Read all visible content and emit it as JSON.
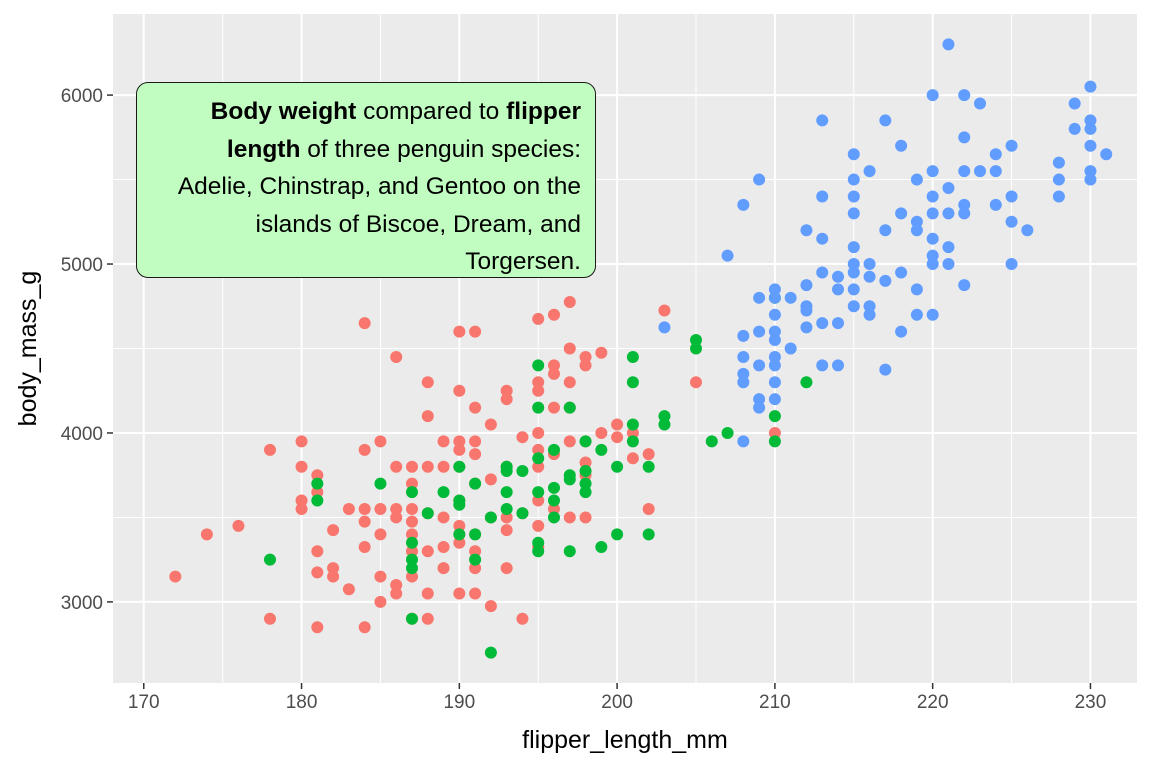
{
  "chart_data": {
    "type": "scatter",
    "xlabel": "flipper_length_mm",
    "ylabel": "body_mass_g",
    "xlim": [
      168.05,
      232.95
    ],
    "ylim": [
      2520,
      6480
    ],
    "x_ticks": [
      170,
      180,
      190,
      200,
      210,
      220,
      230
    ],
    "y_ticks": [
      3000,
      4000,
      5000,
      6000
    ],
    "grid": true,
    "legend": "none",
    "annotation": {
      "part1_bold": "Body weight",
      "part2": " compared to ",
      "part3_bold": "flipper length",
      "part4": " of three penguin species: Adelie, Chinstrap, and Gentoo on the islands of Biscoe, Dream, and Torgersen.",
      "position": "top-left",
      "fill": "#c1fdc1"
    },
    "series": [
      {
        "color": "#f8766d",
        "points": [
          [
            172,
            3150
          ],
          [
            174,
            3400
          ],
          [
            176,
            3450
          ],
          [
            178,
            3900
          ],
          [
            178,
            2900
          ],
          [
            180,
            3950
          ],
          [
            180,
            3800
          ],
          [
            180,
            3600
          ],
          [
            180,
            3550
          ],
          [
            181,
            3750
          ],
          [
            181,
            3650
          ],
          [
            181,
            3300
          ],
          [
            181,
            3175
          ],
          [
            181,
            2850
          ],
          [
            182,
            3425
          ],
          [
            182,
            3200
          ],
          [
            182,
            3150
          ],
          [
            183,
            3550
          ],
          [
            183,
            3075
          ],
          [
            184,
            4650
          ],
          [
            184,
            3900
          ],
          [
            184,
            3550
          ],
          [
            184,
            3475
          ],
          [
            184,
            3325
          ],
          [
            184,
            2850
          ],
          [
            185,
            3950
          ],
          [
            185,
            3550
          ],
          [
            185,
            3400
          ],
          [
            185,
            3150
          ],
          [
            185,
            3000
          ],
          [
            186,
            4450
          ],
          [
            186,
            3800
          ],
          [
            186,
            3550
          ],
          [
            186,
            3500
          ],
          [
            186,
            3100
          ],
          [
            186,
            3050
          ],
          [
            187,
            3800
          ],
          [
            187,
            3700
          ],
          [
            187,
            3550
          ],
          [
            187,
            3475
          ],
          [
            187,
            3400
          ],
          [
            187,
            3300
          ],
          [
            187,
            3150
          ],
          [
            187,
            2900
          ],
          [
            188,
            4300
          ],
          [
            188,
            4100
          ],
          [
            188,
            3800
          ],
          [
            188,
            3525
          ],
          [
            188,
            3300
          ],
          [
            188,
            3050
          ],
          [
            188,
            2900
          ],
          [
            189,
            3950
          ],
          [
            189,
            3800
          ],
          [
            189,
            3500
          ],
          [
            189,
            3325
          ],
          [
            189,
            3200
          ],
          [
            190,
            4600
          ],
          [
            190,
            4250
          ],
          [
            190,
            3950
          ],
          [
            190,
            3900
          ],
          [
            190,
            3800
          ],
          [
            190,
            3600
          ],
          [
            190,
            3450
          ],
          [
            190,
            3400
          ],
          [
            190,
            3350
          ],
          [
            190,
            3050
          ],
          [
            191,
            4600
          ],
          [
            191,
            4150
          ],
          [
            191,
            3950
          ],
          [
            191,
            3875
          ],
          [
            191,
            3700
          ],
          [
            191,
            3400
          ],
          [
            191,
            3300
          ],
          [
            191,
            3200
          ],
          [
            191,
            3050
          ],
          [
            192,
            4050
          ],
          [
            192,
            3725
          ],
          [
            192,
            3500
          ],
          [
            192,
            2975
          ],
          [
            193,
            4250
          ],
          [
            193,
            4200
          ],
          [
            193,
            3800
          ],
          [
            193,
            3500
          ],
          [
            193,
            3425
          ],
          [
            193,
            3200
          ],
          [
            194,
            3975
          ],
          [
            194,
            3525
          ],
          [
            194,
            2900
          ],
          [
            195,
            4675
          ],
          [
            195,
            4300
          ],
          [
            195,
            4250
          ],
          [
            195,
            4000
          ],
          [
            195,
            3900
          ],
          [
            195,
            3800
          ],
          [
            195,
            3600
          ],
          [
            195,
            3450
          ],
          [
            195,
            3325
          ],
          [
            196,
            4700
          ],
          [
            196,
            4400
          ],
          [
            196,
            4350
          ],
          [
            196,
            4150
          ],
          [
            196,
            3875
          ],
          [
            196,
            3550
          ],
          [
            197,
            4775
          ],
          [
            197,
            4500
          ],
          [
            197,
            4300
          ],
          [
            197,
            4150
          ],
          [
            197,
            3950
          ],
          [
            197,
            3500
          ],
          [
            198,
            4450
          ],
          [
            198,
            4400
          ],
          [
            198,
            3950
          ],
          [
            198,
            3825
          ],
          [
            198,
            3750
          ],
          [
            198,
            3500
          ],
          [
            199,
            4475
          ],
          [
            199,
            4000
          ],
          [
            200,
            4050
          ],
          [
            200,
            3975
          ],
          [
            201,
            4000
          ],
          [
            201,
            3850
          ],
          [
            202,
            3875
          ],
          [
            202,
            3550
          ],
          [
            203,
            4725
          ],
          [
            205,
            4300
          ],
          [
            210,
            4000
          ]
        ]
      },
      {
        "color": "#00ba38",
        "points": [
          [
            178,
            3250
          ],
          [
            181,
            3700
          ],
          [
            181,
            3600
          ],
          [
            185,
            3700
          ],
          [
            187,
            3650
          ],
          [
            187,
            3350
          ],
          [
            187,
            3250
          ],
          [
            187,
            3200
          ],
          [
            187,
            2900
          ],
          [
            188,
            3525
          ],
          [
            189,
            3650
          ],
          [
            190,
            3800
          ],
          [
            190,
            3600
          ],
          [
            190,
            3575
          ],
          [
            190,
            3400
          ],
          [
            191,
            3700
          ],
          [
            191,
            3400
          ],
          [
            191,
            3250
          ],
          [
            192,
            3500
          ],
          [
            192,
            2700
          ],
          [
            193,
            3800
          ],
          [
            193,
            3775
          ],
          [
            193,
            3650
          ],
          [
            193,
            3550
          ],
          [
            194,
            3775
          ],
          [
            194,
            3525
          ],
          [
            195,
            4400
          ],
          [
            195,
            4150
          ],
          [
            195,
            3850
          ],
          [
            195,
            3650
          ],
          [
            195,
            3350
          ],
          [
            195,
            3300
          ],
          [
            196,
            3900
          ],
          [
            196,
            3675
          ],
          [
            196,
            3600
          ],
          [
            196,
            3500
          ],
          [
            197,
            4150
          ],
          [
            197,
            3750
          ],
          [
            197,
            3725
          ],
          [
            197,
            3300
          ],
          [
            198,
            3950
          ],
          [
            198,
            3775
          ],
          [
            198,
            3700
          ],
          [
            198,
            3650
          ],
          [
            199,
            3900
          ],
          [
            199,
            3325
          ],
          [
            200,
            3800
          ],
          [
            200,
            3400
          ],
          [
            201,
            4450
          ],
          [
            201,
            4300
          ],
          [
            201,
            4050
          ],
          [
            201,
            3950
          ],
          [
            202,
            3800
          ],
          [
            202,
            3400
          ],
          [
            203,
            4100
          ],
          [
            203,
            4050
          ],
          [
            205,
            4550
          ],
          [
            205,
            4500
          ],
          [
            206,
            3950
          ],
          [
            207,
            4000
          ],
          [
            210,
            4800
          ],
          [
            210,
            4100
          ],
          [
            210,
            3950
          ],
          [
            212,
            4300
          ]
        ]
      },
      {
        "color": "#619cff",
        "points": [
          [
            203,
            4625
          ],
          [
            207,
            5050
          ],
          [
            208,
            5350
          ],
          [
            208,
            4575
          ],
          [
            208,
            4450
          ],
          [
            208,
            4350
          ],
          [
            208,
            4300
          ],
          [
            208,
            3950
          ],
          [
            209,
            5500
          ],
          [
            209,
            4800
          ],
          [
            209,
            4600
          ],
          [
            209,
            4400
          ],
          [
            209,
            4200
          ],
          [
            209,
            4150
          ],
          [
            210,
            4850
          ],
          [
            210,
            4800
          ],
          [
            210,
            4700
          ],
          [
            210,
            4600
          ],
          [
            210,
            4550
          ],
          [
            210,
            4450
          ],
          [
            210,
            4400
          ],
          [
            210,
            4300
          ],
          [
            210,
            4200
          ],
          [
            211,
            4800
          ],
          [
            211,
            4500
          ],
          [
            212,
            5200
          ],
          [
            212,
            4875
          ],
          [
            212,
            4750
          ],
          [
            212,
            4725
          ],
          [
            212,
            4625
          ],
          [
            213,
            5850
          ],
          [
            213,
            5400
          ],
          [
            213,
            5150
          ],
          [
            213,
            4950
          ],
          [
            213,
            4650
          ],
          [
            213,
            4400
          ],
          [
            214,
            4925
          ],
          [
            214,
            4850
          ],
          [
            214,
            4650
          ],
          [
            214,
            4400
          ],
          [
            215,
            5650
          ],
          [
            215,
            5500
          ],
          [
            215,
            5400
          ],
          [
            215,
            5300
          ],
          [
            215,
            5100
          ],
          [
            215,
            5000
          ],
          [
            215,
            4950
          ],
          [
            215,
            4850
          ],
          [
            215,
            4750
          ],
          [
            216,
            5550
          ],
          [
            216,
            5000
          ],
          [
            216,
            4925
          ],
          [
            216,
            4750
          ],
          [
            216,
            4700
          ],
          [
            217,
            5850
          ],
          [
            217,
            5200
          ],
          [
            217,
            4900
          ],
          [
            217,
            4375
          ],
          [
            218,
            5700
          ],
          [
            218,
            5300
          ],
          [
            218,
            4950
          ],
          [
            218,
            4600
          ],
          [
            219,
            5500
          ],
          [
            219,
            5250
          ],
          [
            219,
            5200
          ],
          [
            219,
            4850
          ],
          [
            219,
            4700
          ],
          [
            220,
            6000
          ],
          [
            220,
            5550
          ],
          [
            220,
            5400
          ],
          [
            220,
            5300
          ],
          [
            220,
            5150
          ],
          [
            220,
            5050
          ],
          [
            220,
            5000
          ],
          [
            220,
            4700
          ],
          [
            221,
            6300
          ],
          [
            221,
            5450
          ],
          [
            221,
            5300
          ],
          [
            221,
            5100
          ],
          [
            221,
            5000
          ],
          [
            222,
            6000
          ],
          [
            222,
            5750
          ],
          [
            222,
            5550
          ],
          [
            222,
            5350
          ],
          [
            222,
            5300
          ],
          [
            222,
            4875
          ],
          [
            223,
            5950
          ],
          [
            223,
            5550
          ],
          [
            224,
            5650
          ],
          [
            224,
            5550
          ],
          [
            224,
            5350
          ],
          [
            225,
            5700
          ],
          [
            225,
            5400
          ],
          [
            225,
            5250
          ],
          [
            225,
            5000
          ],
          [
            226,
            5200
          ],
          [
            228,
            5600
          ],
          [
            228,
            5500
          ],
          [
            228,
            5400
          ],
          [
            229,
            5950
          ],
          [
            229,
            5800
          ],
          [
            230,
            6050
          ],
          [
            230,
            5850
          ],
          [
            230,
            5800
          ],
          [
            230,
            5700
          ],
          [
            230,
            5550
          ],
          [
            230,
            5500
          ],
          [
            231,
            5650
          ]
        ]
      }
    ]
  }
}
